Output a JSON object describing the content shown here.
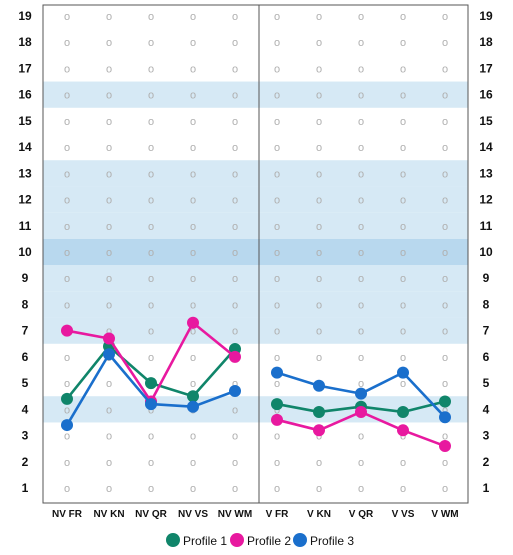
{
  "chart_data": {
    "type": "line",
    "categories": [
      "NV FR",
      "NV KN",
      "NV QR",
      "NV VS",
      "NV WM",
      "V FR",
      "V KN",
      "V QR",
      "V VS",
      "V WM"
    ],
    "groups": [
      {
        "categories": [
          "NV FR",
          "NV KN",
          "NV QR",
          "NV VS",
          "NV WM"
        ]
      },
      {
        "categories": [
          "V FR",
          "V KN",
          "V QR",
          "V VS",
          "V WM"
        ]
      }
    ],
    "y_ticks": [
      "1",
      "2",
      "3",
      "4",
      "5",
      "6",
      "7",
      "8",
      "9",
      "10",
      "11",
      "12",
      "13",
      "14",
      "15",
      "16",
      "17",
      "18",
      "19"
    ],
    "ylim": [
      1,
      19
    ],
    "grid_marker": "o",
    "band_light": [
      4,
      7,
      8,
      9,
      11,
      12,
      13,
      16
    ],
    "band_dark": [
      10
    ],
    "band_color_light": "#d6e9f5",
    "band_color_dark": "#b8d8ee",
    "series": [
      {
        "name": "Profile 1",
        "color": "#10856a",
        "values": [
          4.4,
          6.4,
          5.0,
          4.5,
          6.3,
          4.2,
          3.9,
          4.1,
          3.9,
          4.3
        ]
      },
      {
        "name": "Profile 2",
        "color": "#e8199f",
        "values": [
          7.0,
          6.7,
          4.3,
          7.3,
          6.0,
          3.6,
          3.2,
          3.9,
          3.2,
          2.6
        ]
      },
      {
        "name": "Profile 3",
        "color": "#1a6fcc",
        "values": [
          3.4,
          6.1,
          4.2,
          4.1,
          4.7,
          5.4,
          4.9,
          4.6,
          5.4,
          3.7
        ]
      }
    ],
    "legend": {
      "placement": "bottom-center"
    }
  }
}
